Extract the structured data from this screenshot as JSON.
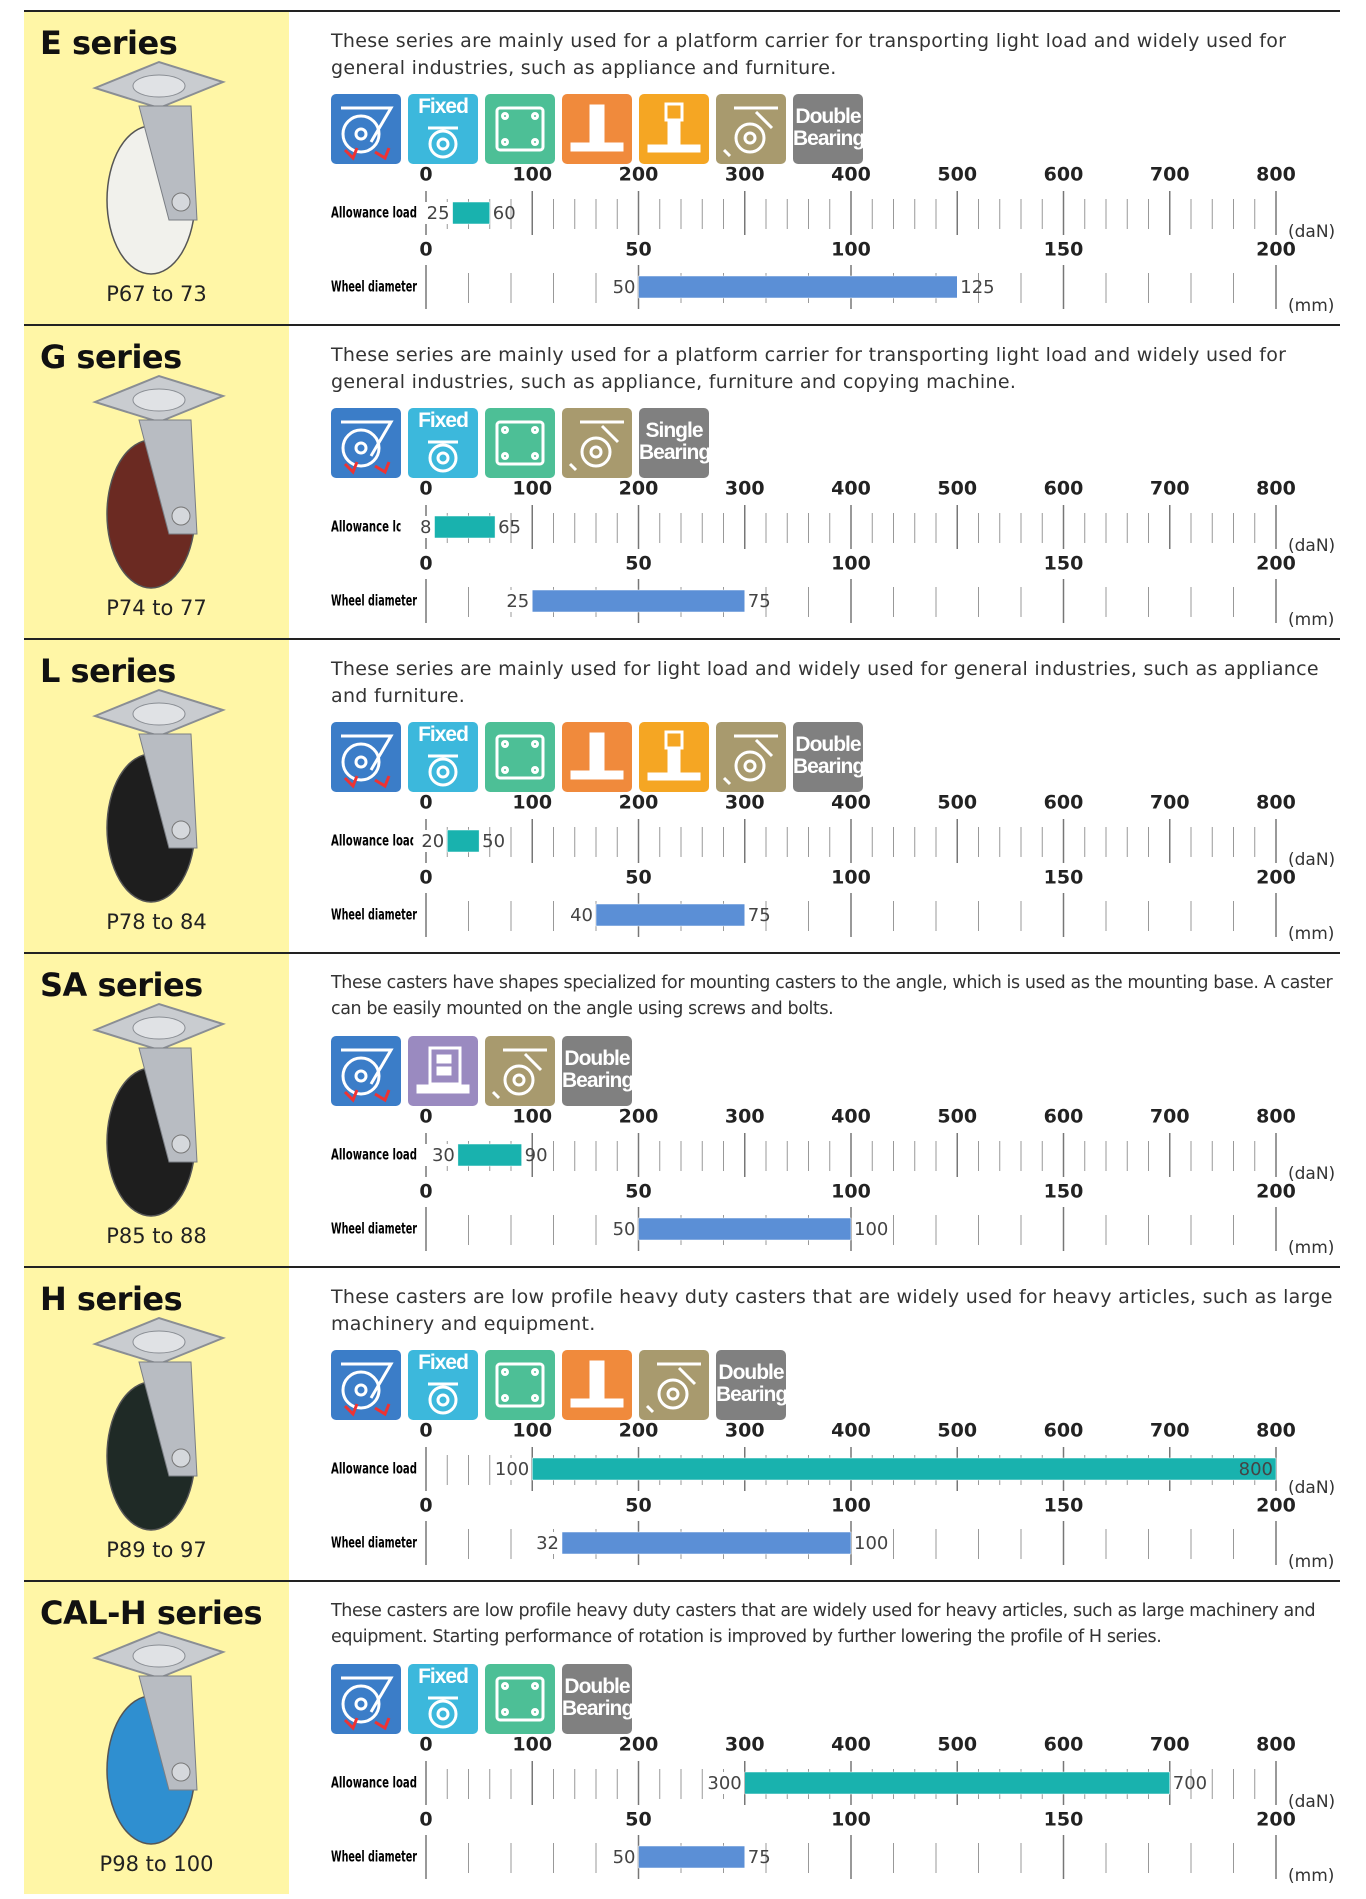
{
  "load_axis": {
    "label": "Allowance load",
    "unit": "(daN)",
    "lim": [
      0,
      800
    ],
    "ticks": [
      0,
      100,
      200,
      300,
      400,
      500,
      600,
      700,
      800
    ],
    "bar_color": "#19b2ae"
  },
  "wheel_axis": {
    "label": "Wheel diameter",
    "unit": "(mm)",
    "lim": [
      0,
      200
    ],
    "ticks": [
      0,
      50,
      100,
      150,
      200
    ],
    "bar_color": "#5b8fd6"
  },
  "sections": [
    {
      "title": "E series",
      "pages": "P67 to 73",
      "description": "These series are mainly used for a platform carrier for transporting light load and widely used for general industries, such as appliance and furniture.",
      "wheel_color": "#f1f1ec",
      "icons": [
        {
          "color": "#3b7dc8"
        },
        {
          "color": "#3cb8dc",
          "label": "Fixed"
        },
        {
          "color": "#4dbf96"
        },
        {
          "color": "#f08a3c"
        },
        {
          "color": "#f5a623"
        },
        {
          "color": "#a89a6e"
        },
        {
          "color": "#808080",
          "label": "Double Bearing"
        }
      ],
      "load": [
        25,
        60
      ],
      "wheel": [
        50,
        125
      ]
    },
    {
      "title": "G series",
      "pages": "P74 to 77",
      "description": "These series are mainly used for a platform carrier for transporting light load and widely used for general industries, such as appliance, furniture and copying machine.",
      "wheel_color": "#6b2a22",
      "icons": [
        {
          "color": "#3b7dc8"
        },
        {
          "color": "#3cb8dc",
          "label": "Fixed"
        },
        {
          "color": "#4dbf96"
        },
        {
          "color": "#a89a6e"
        },
        {
          "color": "#808080",
          "label": "Single Bearing"
        }
      ],
      "load": [
        8,
        65
      ],
      "wheel": [
        25,
        75
      ]
    },
    {
      "title": "L series",
      "pages": "P78 to 84",
      "description": "These series are mainly used for light load and widely used for general industries, such as appliance and furniture.",
      "wheel_color": "#1e1e1e",
      "icons": [
        {
          "color": "#3b7dc8"
        },
        {
          "color": "#3cb8dc",
          "label": "Fixed"
        },
        {
          "color": "#4dbf96"
        },
        {
          "color": "#f08a3c"
        },
        {
          "color": "#f5a623"
        },
        {
          "color": "#a89a6e"
        },
        {
          "color": "#808080",
          "label": "Double Bearing"
        }
      ],
      "load": [
        20,
        50
      ],
      "wheel": [
        40,
        75
      ]
    },
    {
      "title": "SA series",
      "pages": "P85 to 88",
      "description": "These casters have shapes specialized for mounting casters to the angle, which is used as the mounting base. A caster can be easily mounted on the angle using screws and bolts.",
      "wheel_color": "#1e1e1e",
      "icons": [
        {
          "color": "#3b7dc8"
        },
        {
          "color": "#9a8ac0"
        },
        {
          "color": "#a89a6e"
        },
        {
          "color": "#808080",
          "label": "Double Bearing"
        }
      ],
      "load": [
        30,
        90
      ],
      "wheel": [
        50,
        100
      ]
    },
    {
      "title": "H series",
      "pages": "P89 to 97",
      "description": "These casters are low profile heavy duty casters that are widely used for heavy articles, such as large machinery and equipment.",
      "wheel_color": "#1f2a26",
      "icons": [
        {
          "color": "#3b7dc8"
        },
        {
          "color": "#3cb8dc",
          "label": "Fixed"
        },
        {
          "color": "#4dbf96"
        },
        {
          "color": "#f08a3c"
        },
        {
          "color": "#a89a6e"
        },
        {
          "color": "#808080",
          "label": "Double Bearing"
        }
      ],
      "load": [
        100,
        800
      ],
      "wheel": [
        32,
        100
      ]
    },
    {
      "title": "CAL-H series",
      "pages": "P98 to 100",
      "description": "These casters are low profile heavy duty casters that are widely used for heavy articles, such as large machinery and equipment. Starting performance of rotation is improved by further lowering the profile of H series.",
      "wheel_color": "#2f8fd0",
      "icons": [
        {
          "color": "#3b7dc8"
        },
        {
          "color": "#3cb8dc",
          "label": "Fixed"
        },
        {
          "color": "#4dbf96"
        },
        {
          "color": "#808080",
          "label": "Double Bearing"
        }
      ],
      "load": [
        300,
        700
      ],
      "wheel": [
        50,
        75
      ]
    }
  ]
}
